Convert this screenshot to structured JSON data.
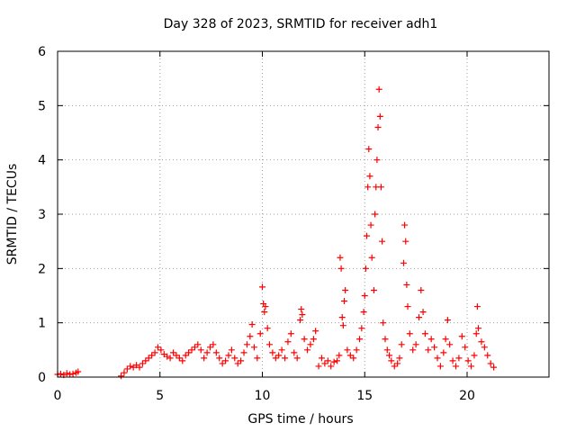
{
  "chart_data": {
    "type": "scatter",
    "title": "Day 328 of 2023, SRMTID for receiver adh1",
    "xlabel": "GPS time / hours",
    "ylabel": "SRMTID / TECUs",
    "xlim": [
      0,
      24
    ],
    "ylim": [
      0,
      6
    ],
    "x_ticks": [
      0,
      5,
      10,
      15,
      20
    ],
    "y_ticks": [
      0,
      1,
      2,
      3,
      4,
      5,
      6
    ],
    "grid": true,
    "marker": "plus",
    "marker_color": "#ff0000",
    "series": [
      {
        "name": "SRMTID",
        "points": [
          [
            0.0,
            0.05
          ],
          [
            0.15,
            0.06
          ],
          [
            0.3,
            0.04
          ],
          [
            0.45,
            0.07
          ],
          [
            0.6,
            0.05
          ],
          [
            0.75,
            0.06
          ],
          [
            0.9,
            0.08
          ],
          [
            1.0,
            0.1
          ],
          [
            3.1,
            0.02
          ],
          [
            3.25,
            0.08
          ],
          [
            3.4,
            0.15
          ],
          [
            3.55,
            0.2
          ],
          [
            3.7,
            0.18
          ],
          [
            3.85,
            0.22
          ],
          [
            4.0,
            0.18
          ],
          [
            4.15,
            0.25
          ],
          [
            4.3,
            0.3
          ],
          [
            4.45,
            0.35
          ],
          [
            4.6,
            0.4
          ],
          [
            4.75,
            0.45
          ],
          [
            4.9,
            0.55
          ],
          [
            5.05,
            0.5
          ],
          [
            5.2,
            0.42
          ],
          [
            5.35,
            0.38
          ],
          [
            5.5,
            0.35
          ],
          [
            5.65,
            0.45
          ],
          [
            5.8,
            0.4
          ],
          [
            5.95,
            0.35
          ],
          [
            6.1,
            0.3
          ],
          [
            6.25,
            0.4
          ],
          [
            6.4,
            0.45
          ],
          [
            6.55,
            0.5
          ],
          [
            6.7,
            0.55
          ],
          [
            6.85,
            0.6
          ],
          [
            7.0,
            0.5
          ],
          [
            7.15,
            0.35
          ],
          [
            7.3,
            0.45
          ],
          [
            7.45,
            0.55
          ],
          [
            7.6,
            0.6
          ],
          [
            7.75,
            0.45
          ],
          [
            7.9,
            0.35
          ],
          [
            8.05,
            0.25
          ],
          [
            8.2,
            0.3
          ],
          [
            8.35,
            0.4
          ],
          [
            8.5,
            0.5
          ],
          [
            8.65,
            0.35
          ],
          [
            8.8,
            0.25
          ],
          [
            8.95,
            0.3
          ],
          [
            9.1,
            0.45
          ],
          [
            9.25,
            0.6
          ],
          [
            9.4,
            0.75
          ],
          [
            9.5,
            0.97
          ],
          [
            9.6,
            0.55
          ],
          [
            9.75,
            0.35
          ],
          [
            9.9,
            0.8
          ],
          [
            10.0,
            1.66
          ],
          [
            10.05,
            1.35
          ],
          [
            10.1,
            1.2
          ],
          [
            10.15,
            1.3
          ],
          [
            10.25,
            0.9
          ],
          [
            10.35,
            0.6
          ],
          [
            10.5,
            0.45
          ],
          [
            10.65,
            0.35
          ],
          [
            10.8,
            0.4
          ],
          [
            10.95,
            0.5
          ],
          [
            11.1,
            0.35
          ],
          [
            11.25,
            0.65
          ],
          [
            11.4,
            0.8
          ],
          [
            11.55,
            0.45
          ],
          [
            11.7,
            0.35
          ],
          [
            11.85,
            1.05
          ],
          [
            11.9,
            1.25
          ],
          [
            11.95,
            1.15
          ],
          [
            12.05,
            0.7
          ],
          [
            12.2,
            0.5
          ],
          [
            12.35,
            0.6
          ],
          [
            12.5,
            0.7
          ],
          [
            12.6,
            0.85
          ],
          [
            12.75,
            0.2
          ],
          [
            12.9,
            0.35
          ],
          [
            13.05,
            0.25
          ],
          [
            13.2,
            0.3
          ],
          [
            13.35,
            0.2
          ],
          [
            13.5,
            0.28
          ],
          [
            13.65,
            0.3
          ],
          [
            13.75,
            0.4
          ],
          [
            13.8,
            2.2
          ],
          [
            13.85,
            2.0
          ],
          [
            13.9,
            1.1
          ],
          [
            13.95,
            0.95
          ],
          [
            14.0,
            1.4
          ],
          [
            14.05,
            1.6
          ],
          [
            14.15,
            0.5
          ],
          [
            14.3,
            0.4
          ],
          [
            14.45,
            0.35
          ],
          [
            14.6,
            0.5
          ],
          [
            14.75,
            0.7
          ],
          [
            14.85,
            0.9
          ],
          [
            14.95,
            1.2
          ],
          [
            15.0,
            1.5
          ],
          [
            15.05,
            2.0
          ],
          [
            15.1,
            2.6
          ],
          [
            15.15,
            3.5
          ],
          [
            15.2,
            4.2
          ],
          [
            15.25,
            3.7
          ],
          [
            15.3,
            2.8
          ],
          [
            15.35,
            2.2
          ],
          [
            15.45,
            1.6
          ],
          [
            15.5,
            3.0
          ],
          [
            15.55,
            3.5
          ],
          [
            15.6,
            4.0
          ],
          [
            15.65,
            4.6
          ],
          [
            15.7,
            5.3
          ],
          [
            15.75,
            4.8
          ],
          [
            15.8,
            3.5
          ],
          [
            15.85,
            2.5
          ],
          [
            15.9,
            1.0
          ],
          [
            16.0,
            0.7
          ],
          [
            16.1,
            0.5
          ],
          [
            16.2,
            0.4
          ],
          [
            16.3,
            0.3
          ],
          [
            16.45,
            0.2
          ],
          [
            16.6,
            0.25
          ],
          [
            16.7,
            0.35
          ],
          [
            16.8,
            0.6
          ],
          [
            16.9,
            2.1
          ],
          [
            16.95,
            2.8
          ],
          [
            17.0,
            2.5
          ],
          [
            17.05,
            1.7
          ],
          [
            17.1,
            1.3
          ],
          [
            17.2,
            0.8
          ],
          [
            17.35,
            0.5
          ],
          [
            17.5,
            0.6
          ],
          [
            17.65,
            1.1
          ],
          [
            17.75,
            1.6
          ],
          [
            17.85,
            1.2
          ],
          [
            17.95,
            0.8
          ],
          [
            18.1,
            0.5
          ],
          [
            18.25,
            0.7
          ],
          [
            18.4,
            0.55
          ],
          [
            18.55,
            0.35
          ],
          [
            18.7,
            0.2
          ],
          [
            18.85,
            0.45
          ],
          [
            18.95,
            0.7
          ],
          [
            19.05,
            1.05
          ],
          [
            19.15,
            0.6
          ],
          [
            19.3,
            0.3
          ],
          [
            19.45,
            0.2
          ],
          [
            19.6,
            0.35
          ],
          [
            19.75,
            0.75
          ],
          [
            19.9,
            0.55
          ],
          [
            20.05,
            0.3
          ],
          [
            20.2,
            0.2
          ],
          [
            20.35,
            0.4
          ],
          [
            20.45,
            0.8
          ],
          [
            20.5,
            1.3
          ],
          [
            20.55,
            0.9
          ],
          [
            20.7,
            0.65
          ],
          [
            20.85,
            0.55
          ],
          [
            21.0,
            0.4
          ],
          [
            21.15,
            0.25
          ],
          [
            21.3,
            0.18
          ]
        ]
      }
    ]
  }
}
